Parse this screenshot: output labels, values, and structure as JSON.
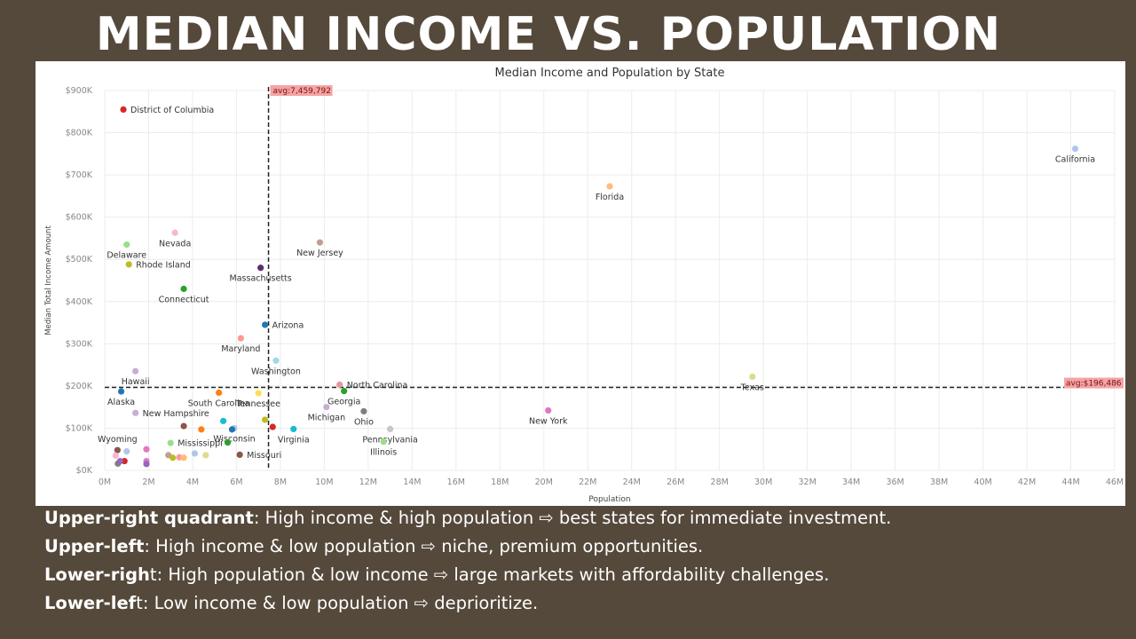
{
  "slide": {
    "title": "MEDIAN INCOME VS. POPULATION"
  },
  "chart_data": {
    "type": "scatter",
    "title": "Median Income and Population by State",
    "xlabel": "Population",
    "ylabel": "Median Total Income Amount",
    "xlim": [
      0,
      46
    ],
    "ylim": [
      0,
      900
    ],
    "x_ticks": [
      "0M",
      "2M",
      "4M",
      "6M",
      "8M",
      "10M",
      "12M",
      "14M",
      "16M",
      "18M",
      "20M",
      "22M",
      "24M",
      "26M",
      "28M",
      "30M",
      "32M",
      "34M",
      "36M",
      "38M",
      "40M",
      "42M",
      "44M",
      "46M"
    ],
    "y_ticks": [
      "$0K",
      "$100K",
      "$200K",
      "$300K",
      "$400K",
      "$500K",
      "$600K",
      "$700K",
      "$800K",
      "$900K"
    ],
    "grid": true,
    "reference_lines": {
      "x_avg": {
        "value": 7.46,
        "label": "avg:7,459,792"
      },
      "y_avg": {
        "value": 196.486,
        "label": "avg:$196,486"
      }
    },
    "points": [
      {
        "label": "District of Columbia",
        "x": 0.85,
        "y": 855,
        "color": "#d62728",
        "pos": "right"
      },
      {
        "label": "California",
        "x": 44.2,
        "y": 762,
        "color": "#aec7e8",
        "pos": "below"
      },
      {
        "label": "Florida",
        "x": 23.0,
        "y": 673,
        "color": "#ffbb78",
        "pos": "below"
      },
      {
        "label": "Nevada",
        "x": 3.2,
        "y": 563,
        "color": "#f7b6d2",
        "pos": "below"
      },
      {
        "label": "Delaware",
        "x": 1.0,
        "y": 535,
        "color": "#98df8a",
        "pos": "below"
      },
      {
        "label": "New Jersey",
        "x": 9.8,
        "y": 540,
        "color": "#c49c94",
        "pos": "below"
      },
      {
        "label": "Rhode Island",
        "x": 1.1,
        "y": 488,
        "color": "#bcbd22",
        "pos": "right"
      },
      {
        "label": "Massachusetts",
        "x": 7.1,
        "y": 480,
        "color": "#5b2d6e",
        "pos": "below"
      },
      {
        "label": "Connecticut",
        "x": 3.6,
        "y": 430,
        "color": "#2ca02c",
        "pos": "below"
      },
      {
        "label": "Arizona",
        "x": 7.3,
        "y": 345,
        "color": "#1f77b4",
        "pos": "right"
      },
      {
        "label": "Maryland",
        "x": 6.2,
        "y": 313,
        "color": "#ff9896",
        "pos": "below"
      },
      {
        "label": "Washington",
        "x": 7.8,
        "y": 260,
        "color": "#9edae5",
        "pos": "below"
      },
      {
        "label": "Hawaii",
        "x": 1.4,
        "y": 235,
        "color": "#c5b0d5",
        "pos": "below"
      },
      {
        "label": "Texas",
        "x": 29.5,
        "y": 222,
        "color": "#dbdb8d",
        "pos": "below"
      },
      {
        "label": "North Carolina",
        "x": 10.7,
        "y": 203,
        "color": "#e7969c",
        "pos": "right"
      },
      {
        "label": "Georgia",
        "x": 10.9,
        "y": 188,
        "color": "#2ca02c",
        "pos": "below"
      },
      {
        "label": "Alaska",
        "x": 0.75,
        "y": 187,
        "color": "#1f77b4",
        "pos": "below"
      },
      {
        "label": "South Carolina",
        "x": 5.2,
        "y": 184,
        "color": "#ff7f0e",
        "pos": "below"
      },
      {
        "label": "Tennessee",
        "x": 7.0,
        "y": 183,
        "color": "#ffdd55",
        "pos": "below"
      },
      {
        "label": "New Hampshire",
        "x": 1.4,
        "y": 136,
        "color": "#c5b0d5",
        "pos": "right"
      },
      {
        "label": "Michigan",
        "x": 10.1,
        "y": 150,
        "color": "#c5b0d5",
        "pos": "below"
      },
      {
        "label": "Ohio",
        "x": 11.8,
        "y": 140,
        "color": "#7f7f7f",
        "pos": "below"
      },
      {
        "label": "New York",
        "x": 20.2,
        "y": 142,
        "color": "#e377c2",
        "pos": "below"
      },
      {
        "label": "Wisconsin",
        "x": 5.9,
        "y": 100,
        "color": "#aec7e8",
        "pos": "below"
      },
      {
        "label": "Virginia",
        "x": 8.6,
        "y": 98,
        "color": "#17becf",
        "pos": "below"
      },
      {
        "label": "Pennsylvania",
        "x": 13.0,
        "y": 98,
        "color": "#c7c7c7",
        "pos": "below"
      },
      {
        "label": "Mississippi",
        "x": 3.0,
        "y": 65,
        "color": "#98df8a",
        "pos": "right"
      },
      {
        "label": "Illinois",
        "x": 12.7,
        "y": 68,
        "color": "#98df8a",
        "pos": "below"
      },
      {
        "label": "Wyoming",
        "x": 0.58,
        "y": 48,
        "color": "#8c564b",
        "pos": "above"
      },
      {
        "label": "Missouri",
        "x": 6.15,
        "y": 37,
        "color": "#8c564b",
        "pos": "right"
      },
      {
        "label": "",
        "x": 7.3,
        "y": 120,
        "color": "#bcbd22",
        "pos": "none"
      },
      {
        "label": "",
        "x": 7.65,
        "y": 103,
        "color": "#d62728",
        "pos": "none"
      },
      {
        "label": "",
        "x": 5.4,
        "y": 117,
        "color": "#17becf",
        "pos": "none"
      },
      {
        "label": "",
        "x": 5.8,
        "y": 97,
        "color": "#1f77b4",
        "pos": "none"
      },
      {
        "label": "",
        "x": 3.6,
        "y": 105,
        "color": "#8c564b",
        "pos": "none"
      },
      {
        "label": "",
        "x": 4.4,
        "y": 97,
        "color": "#ff7f0e",
        "pos": "none"
      },
      {
        "label": "",
        "x": 5.6,
        "y": 66,
        "color": "#2ca02c",
        "pos": "none"
      },
      {
        "label": "",
        "x": 4.1,
        "y": 40,
        "color": "#aec7e8",
        "pos": "none"
      },
      {
        "label": "",
        "x": 4.6,
        "y": 36,
        "color": "#dbdb8d",
        "pos": "none"
      },
      {
        "label": "",
        "x": 1.0,
        "y": 45,
        "color": "#aec7e8",
        "pos": "none"
      },
      {
        "label": "",
        "x": 1.9,
        "y": 50,
        "color": "#e377c2",
        "pos": "none"
      },
      {
        "label": "",
        "x": 0.5,
        "y": 35,
        "color": "#f7b6d2",
        "pos": "none"
      },
      {
        "label": "",
        "x": 0.9,
        "y": 22,
        "color": "#d62728",
        "pos": "none"
      },
      {
        "label": "",
        "x": 1.9,
        "y": 22,
        "color": "#e377c2",
        "pos": "none"
      },
      {
        "label": "",
        "x": 0.6,
        "y": 16,
        "color": "#7f7f7f",
        "pos": "none"
      },
      {
        "label": "",
        "x": 0.7,
        "y": 22,
        "color": "#9467bd",
        "pos": "none"
      },
      {
        "label": "",
        "x": 1.9,
        "y": 15,
        "color": "#9467bd",
        "pos": "none"
      },
      {
        "label": "",
        "x": 2.9,
        "y": 36,
        "color": "#c49c94",
        "pos": "none"
      },
      {
        "label": "",
        "x": 3.1,
        "y": 30,
        "color": "#bcbd22",
        "pos": "none"
      },
      {
        "label": "",
        "x": 3.4,
        "y": 31,
        "color": "#ff9896",
        "pos": "none"
      },
      {
        "label": "",
        "x": 3.6,
        "y": 30,
        "color": "#ffbb78",
        "pos": "none"
      }
    ]
  },
  "notes": [
    {
      "bold": "Upper-right quadrant",
      "text": ": High income & high population ⇨ best states for immediate investment."
    },
    {
      "bold": "Upper-left",
      "text": ": High income & low population ⇨ niche, premium opportunities."
    },
    {
      "bold": "Lower-righ",
      "text": "t: High population & low income ⇨ large markets with affordability challenges."
    },
    {
      "bold": "Lower-lef",
      "text": "t: Low income & low population ⇨ deprioritize."
    }
  ]
}
